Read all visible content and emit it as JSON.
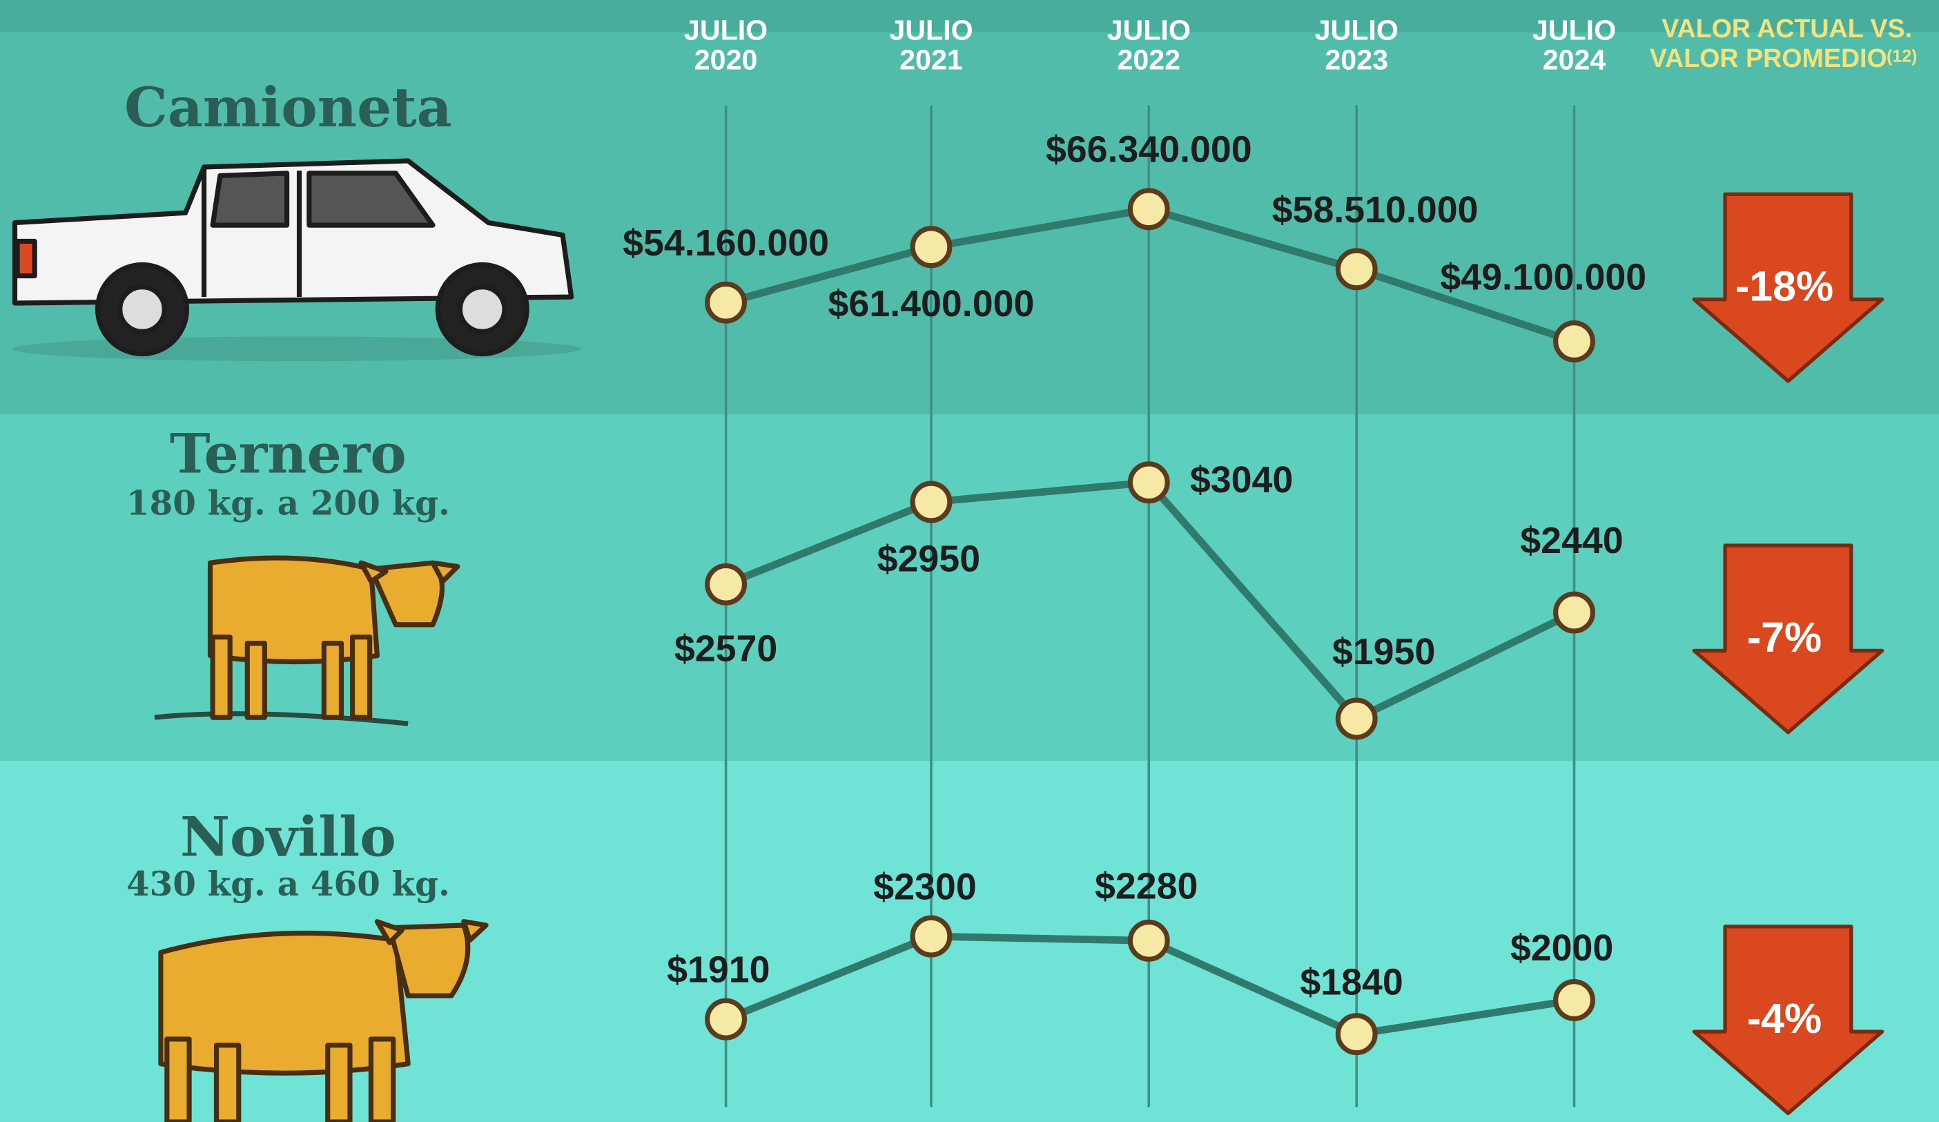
{
  "header": {
    "categories": [
      {
        "month": "JULIO",
        "year": "2020"
      },
      {
        "month": "JULIO",
        "year": "2021"
      },
      {
        "month": "JULIO",
        "year": "2022"
      },
      {
        "month": "JULIO",
        "year": "2023"
      },
      {
        "month": "JULIO",
        "year": "2024"
      }
    ],
    "change_title": [
      "VALOR ACTUAL VS.",
      "VALOR PROMEDIO"
    ],
    "change_note": "(12)"
  },
  "chart_data": [
    {
      "type": "line",
      "title": "Camioneta",
      "color": "#2f7a6d",
      "values": [
        54160000,
        61400000,
        66340000,
        58510000,
        49100000
      ],
      "value_labels": [
        "$54.160.000",
        "$61.400.000",
        "$66.340.000",
        "$58.510.000",
        "$49.100.000"
      ],
      "change": -18,
      "change_label": "-18%",
      "change_color": "#d9481f"
    },
    {
      "type": "line",
      "title": "Ternero",
      "subtitle": "180 kg. a 200 kg.",
      "color": "#2f7a6d",
      "values": [
        2570,
        2950,
        3040,
        1950,
        2440
      ],
      "value_labels": [
        "$2570",
        "$2950",
        "$3040",
        "$1950",
        "$2440"
      ],
      "change": -7,
      "change_label": "-7%",
      "change_color": "#d9481f"
    },
    {
      "type": "line",
      "title": "Novillo",
      "subtitle": "430 kg. a 460 kg.",
      "color": "#2f7a6d",
      "values": [
        1910,
        2300,
        2280,
        1840,
        2000
      ],
      "value_labels": [
        "$1910",
        "$2300",
        "$2280",
        "$1840",
        "$2000"
      ],
      "change": -4,
      "change_label": "-4%",
      "change_color": "#d9481f"
    }
  ]
}
